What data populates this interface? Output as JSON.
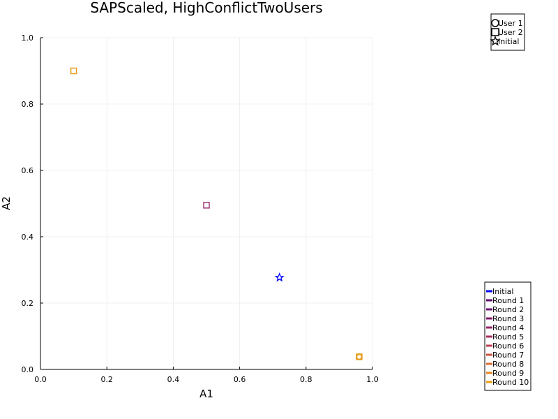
{
  "chart_data": {
    "type": "scatter",
    "title": "SAPScaled, HighConflictTwoUsers",
    "xlabel": "A1",
    "ylabel": "A2",
    "xlim": [
      0,
      1
    ],
    "ylim": [
      0,
      1
    ],
    "xticks": [
      0.0,
      0.2,
      0.4,
      0.6,
      0.8,
      1.0
    ],
    "yticks": [
      0.0,
      0.2,
      0.4,
      0.6,
      0.8,
      1.0
    ],
    "xtick_labels": [
      "0.0",
      "0.2",
      "0.4",
      "0.6",
      "0.8",
      "1.0"
    ],
    "ytick_labels": [
      "0.0",
      "0.2",
      "0.4",
      "0.6",
      "0.8",
      "1.0"
    ],
    "grid": true,
    "points": [
      {
        "marker": "square",
        "x": 0.1,
        "y": 0.9,
        "color": "#E69A1A"
      },
      {
        "marker": "square",
        "x": 0.5,
        "y": 0.495,
        "color": "#A23A78"
      },
      {
        "marker": "star",
        "x": 0.72,
        "y": 0.277,
        "color": "#0000FF"
      },
      {
        "marker": "square",
        "x": 0.96,
        "y": 0.038,
        "color": "#E69A1A"
      },
      {
        "marker": "circle",
        "x": 0.96,
        "y": 0.038,
        "color": "#E69A1A"
      }
    ],
    "marker_legend": {
      "placement": "top-right",
      "entries": [
        {
          "label": "User 1",
          "marker": "circle"
        },
        {
          "label": "User 2",
          "marker": "square"
        },
        {
          "label": "Initial",
          "marker": "star"
        }
      ]
    },
    "round_legend": {
      "placement": "bottom-right",
      "entries": [
        {
          "label": "Initial",
          "color": "#0000FF"
        },
        {
          "label": "Round 1",
          "color": "#5C0B6E"
        },
        {
          "label": "Round 2",
          "color": "#6E1470"
        },
        {
          "label": "Round 3",
          "color": "#831D6E"
        },
        {
          "label": "Round 4",
          "color": "#96276A"
        },
        {
          "label": "Round 5",
          "color": "#A83263"
        },
        {
          "label": "Round 6",
          "color": "#BC3F54"
        },
        {
          "label": "Round 7",
          "color": "#CF5340"
        },
        {
          "label": "Round 8",
          "color": "#DC6B2C"
        },
        {
          "label": "Round 9",
          "color": "#E5851D"
        },
        {
          "label": "Round 10",
          "color": "#EE9E10"
        }
      ]
    }
  }
}
